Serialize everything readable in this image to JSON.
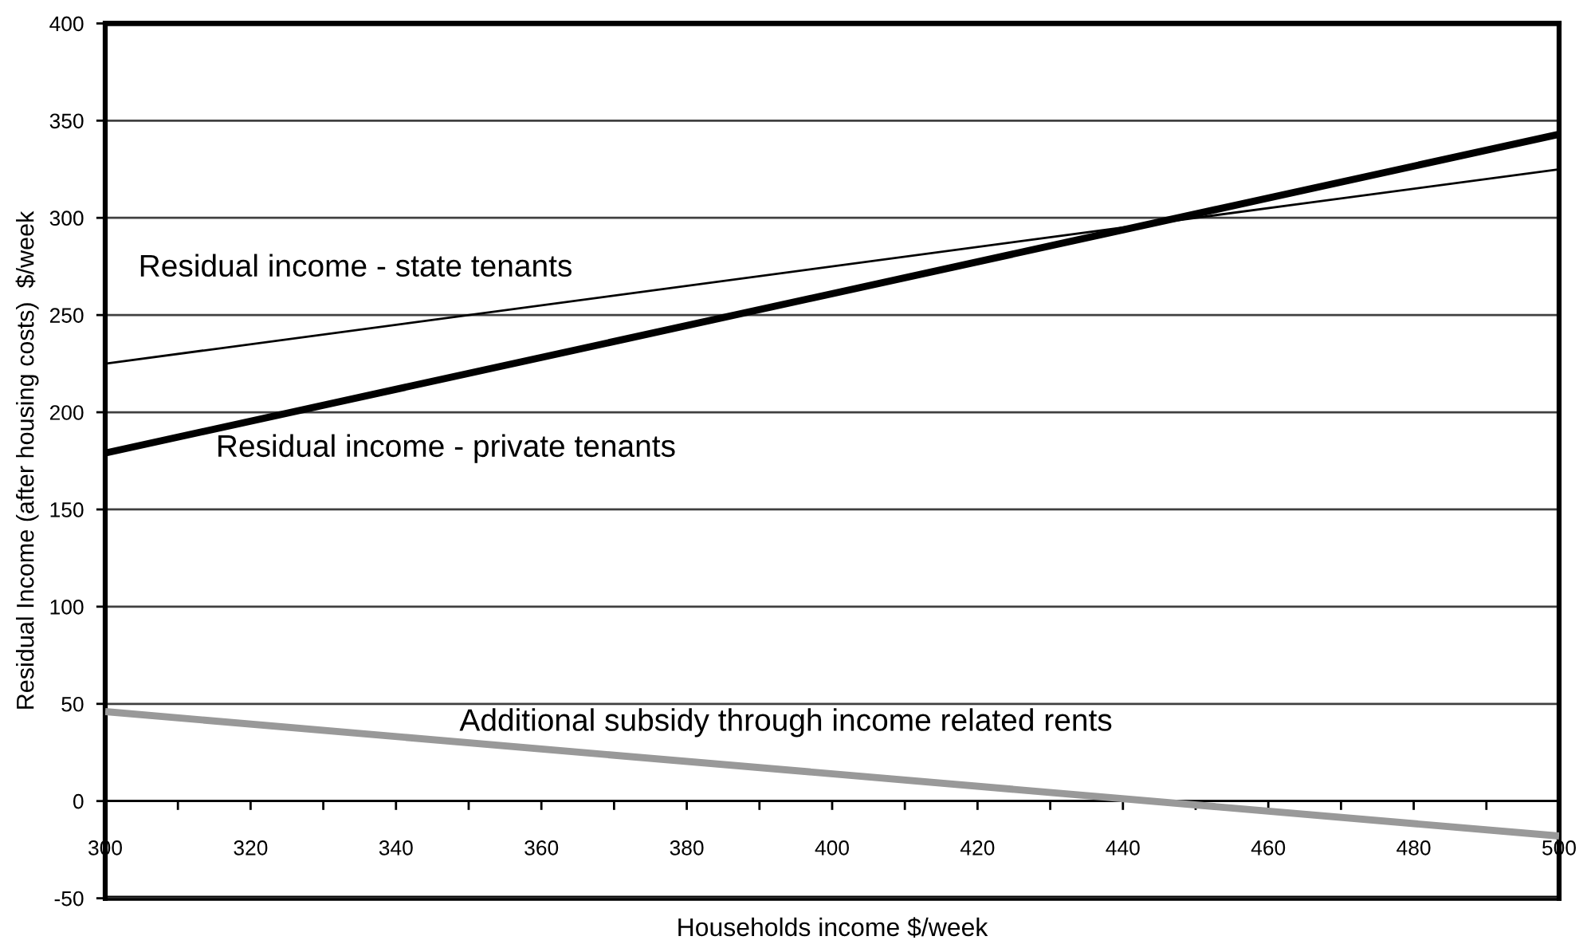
{
  "chart_data": {
    "type": "line",
    "xlabel": "Households income $/week",
    "ylabel": "Residual Income (after housing costs)  $/week",
    "x": [
      300,
      500
    ],
    "series": [
      {
        "name": "Residual income - state tenants",
        "color": "#000000",
        "values": [
          225,
          325
        ]
      },
      {
        "name": "Residual income - private tenants",
        "color": "#000000",
        "values": [
          179,
          343
        ]
      },
      {
        "name": "Additional subsidy through income related rents",
        "color": "#999999",
        "values": [
          46,
          -18
        ]
      }
    ],
    "xlim": [
      300,
      500
    ],
    "ylim": [
      -50,
      400
    ],
    "xticks": [
      300,
      {
        "value": 310,
        "label": null
      },
      320,
      {
        "value": 330,
        "label": null
      },
      340,
      {
        "value": 350,
        "label": null
      },
      360,
      {
        "value": 370,
        "label": null
      },
      380,
      {
        "value": 390,
        "label": null
      },
      400,
      {
        "value": 410,
        "label": null
      },
      420,
      {
        "value": 430,
        "label": null
      },
      440,
      {
        "value": 450,
        "label": null
      },
      460,
      {
        "value": 470,
        "label": null
      },
      480,
      {
        "value": 490,
        "label": null
      },
      500
    ],
    "yticks": [
      -50,
      0,
      50,
      100,
      150,
      200,
      250,
      300,
      350,
      400
    ],
    "grid": "y",
    "line_style": "solid"
  }
}
